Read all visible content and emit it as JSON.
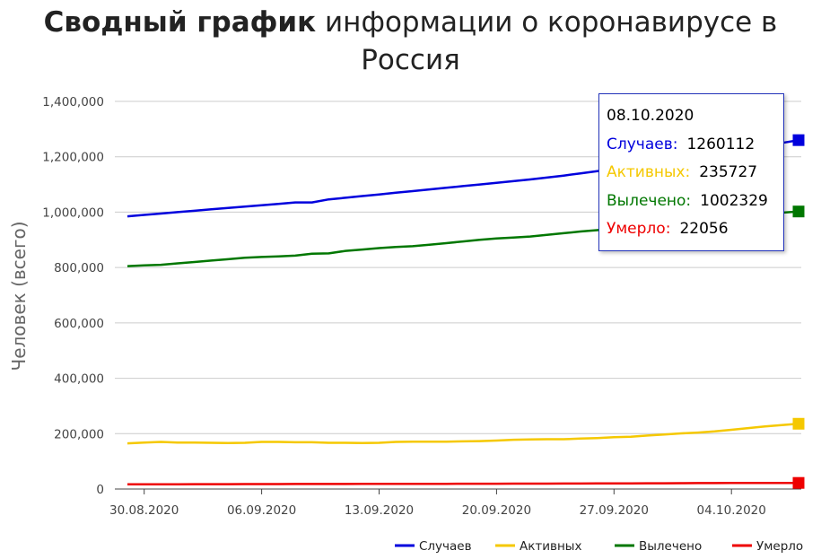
{
  "title": {
    "bold": "Сводный график",
    "regular": "информации о коронавирусе в Россия"
  },
  "chart_data": {
    "type": "line",
    "xlabel": "",
    "ylabel": "Человек (всего)",
    "ylim": [
      0,
      1400000
    ],
    "y_ticks": [
      "0",
      "200,000",
      "400,000",
      "600,000",
      "800,000",
      "1,000,000",
      "1,200,000",
      "1,400,000"
    ],
    "x_tick_labels": [
      "30.08.2020",
      "06.09.2020",
      "13.09.2020",
      "20.09.2020",
      "27.09.2020",
      "04.10.2020"
    ],
    "x": [
      "29.08.2020",
      "30.08.2020",
      "31.08.2020",
      "01.09.2020",
      "02.09.2020",
      "03.09.2020",
      "04.09.2020",
      "05.09.2020",
      "06.09.2020",
      "07.09.2020",
      "08.09.2020",
      "09.09.2020",
      "10.09.2020",
      "11.09.2020",
      "12.09.2020",
      "13.09.2020",
      "14.09.2020",
      "15.09.2020",
      "16.09.2020",
      "17.09.2020",
      "18.09.2020",
      "19.09.2020",
      "20.09.2020",
      "21.09.2020",
      "22.09.2020",
      "23.09.2020",
      "24.09.2020",
      "25.09.2020",
      "26.09.2020",
      "27.09.2020",
      "28.09.2020",
      "29.09.2020",
      "30.09.2020",
      "01.10.2020",
      "02.10.2020",
      "03.10.2020",
      "04.10.2020",
      "05.10.2020",
      "06.10.2020",
      "07.10.2020",
      "08.10.2020"
    ],
    "series": [
      {
        "name": "Случаев",
        "color": "#0000dd",
        "values": [
          985000,
          990000,
          995000,
          1000000,
          1005000,
          1010000,
          1015000,
          1020000,
          1025000,
          1030000,
          1035000,
          1035000,
          1046000,
          1052000,
          1058000,
          1064000,
          1070000,
          1076000,
          1082000,
          1088000,
          1094000,
          1100000,
          1106000,
          1112000,
          1118000,
          1125000,
          1132000,
          1140000,
          1148000,
          1156000,
          1164000,
          1173000,
          1181000,
          1190000,
          1199000,
          1209000,
          1220000,
          1230000,
          1241000,
          1250000,
          1260112
        ]
      },
      {
        "name": "Активных",
        "color": "#f5c800",
        "values": [
          165000,
          168000,
          170000,
          168000,
          168000,
          167000,
          166000,
          167000,
          170000,
          170000,
          169000,
          169000,
          167000,
          167000,
          166000,
          167000,
          170000,
          171000,
          171000,
          171000,
          172000,
          173000,
          175000,
          178000,
          179000,
          180000,
          180000,
          182000,
          184000,
          187000,
          189000,
          193000,
          197000,
          201000,
          204000,
          208000,
          214000,
          220000,
          226000,
          231000,
          235727
        ]
      },
      {
        "name": "Вылечено",
        "color": "#007700",
        "values": [
          805000,
          808000,
          810000,
          815000,
          820000,
          825000,
          830000,
          835000,
          838000,
          840000,
          843000,
          850000,
          851000,
          860000,
          865000,
          870000,
          874000,
          877000,
          882000,
          888000,
          894000,
          900000,
          905000,
          908000,
          912000,
          918000,
          924000,
          930000,
          935000,
          941000,
          948000,
          955000,
          962000,
          969000,
          975000,
          980000,
          985000,
          990000,
          995000,
          998000,
          1002329
        ]
      },
      {
        "name": "Умерло",
        "color": "#ee0000",
        "values": [
          17000,
          17100,
          17200,
          17300,
          17400,
          17500,
          17600,
          17700,
          17800,
          17900,
          18000,
          18100,
          18200,
          18300,
          18400,
          18500,
          18600,
          18700,
          18800,
          18900,
          19000,
          19100,
          19200,
          19300,
          19400,
          19500,
          19700,
          19900,
          20100,
          20300,
          20500,
          20700,
          20900,
          21100,
          21300,
          21400,
          21600,
          21700,
          21800,
          21950,
          22056
        ]
      }
    ],
    "grid": true,
    "legend_position": "bottom-right",
    "tooltip": {
      "date": "08.10.2020",
      "rows": [
        {
          "label": "Случаев:",
          "value": "1260112",
          "color": "#0000dd"
        },
        {
          "label": "Активных:",
          "value": "235727",
          "color": "#f5c800"
        },
        {
          "label": "Вылечено:",
          "value": "1002329",
          "color": "#007700"
        },
        {
          "label": "Умерло:",
          "value": "22056",
          "color": "#ee0000"
        }
      ]
    }
  }
}
